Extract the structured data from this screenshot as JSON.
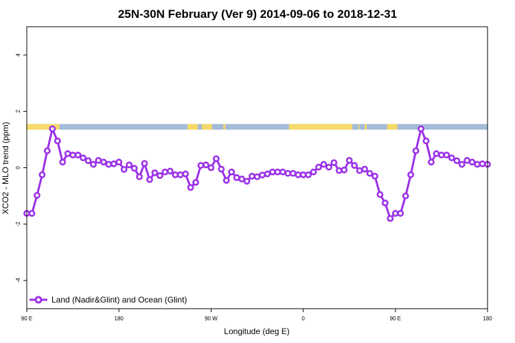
{
  "chart_data": {
    "type": "line",
    "title": "25N-30N February (Ver 9)   2014-09-06 to 2018-12-31",
    "xlabel": "Longitude (deg E)",
    "ylabel": "XCO2 - MLO trend (ppm)",
    "xlim": [
      90,
      540
    ],
    "ylim": [
      -5,
      5
    ],
    "x_ticks": [
      {
        "value": 90,
        "label": "90 E"
      },
      {
        "value": 180,
        "label": "180"
      },
      {
        "value": 270,
        "label": "90 W"
      },
      {
        "value": 360,
        "label": "0"
      },
      {
        "value": 450,
        "label": "90 E"
      },
      {
        "value": 540,
        "label": "180"
      }
    ],
    "y_ticks": [
      {
        "value": -4,
        "label": "-4"
      },
      {
        "value": -2,
        "label": "-2"
      },
      {
        "value": 0,
        "label": "0"
      },
      {
        "value": 2,
        "label": "2"
      },
      {
        "value": 4,
        "label": "4"
      }
    ],
    "grid": false,
    "legend_position": "bottom-left",
    "series": [
      {
        "name": "Land (Nadir&Glint) and Ocean (Glint)",
        "color": "#9b30e8",
        "x": [
          90,
          95,
          100,
          105,
          110,
          115,
          120,
          125,
          130,
          135,
          140,
          145,
          150,
          155,
          160,
          165,
          170,
          175,
          180,
          185,
          190,
          195,
          200,
          205,
          210,
          215,
          220,
          225,
          230,
          235,
          240,
          245,
          250,
          255,
          260,
          265,
          270,
          275,
          280,
          285,
          290,
          295,
          300,
          305,
          310,
          315,
          320,
          325,
          330,
          335,
          340,
          345,
          350,
          355,
          360,
          365,
          370,
          375,
          380,
          385,
          390,
          395,
          400,
          405,
          410,
          415,
          420,
          425,
          430,
          435,
          440,
          445,
          450,
          455,
          460,
          465,
          470,
          475,
          480,
          485,
          490,
          495,
          500,
          505,
          510,
          515,
          520,
          525,
          530,
          535,
          540
        ],
        "y": [
          -1.62,
          -1.62,
          -0.98,
          -0.25,
          0.6,
          1.38,
          0.95,
          0.2,
          0.5,
          0.45,
          0.45,
          0.35,
          0.25,
          0.12,
          0.26,
          0.2,
          0.12,
          0.14,
          0.2,
          -0.06,
          0.1,
          -0.02,
          -0.32,
          0.15,
          -0.42,
          -0.18,
          -0.28,
          -0.15,
          -0.12,
          -0.25,
          -0.25,
          -0.22,
          -0.7,
          -0.52,
          0.08,
          0.1,
          0.0,
          0.32,
          -0.05,
          -0.45,
          -0.15,
          -0.35,
          -0.4,
          -0.48,
          -0.3,
          -0.32,
          -0.26,
          -0.22,
          -0.15,
          -0.15,
          -0.15,
          -0.2,
          -0.2,
          -0.25,
          -0.25,
          -0.25,
          -0.15,
          0.02,
          0.12,
          0.02,
          0.18,
          -0.1,
          -0.08,
          0.26,
          0.08,
          -0.1,
          -0.05,
          -0.2,
          -0.3,
          -0.95,
          -1.25,
          -1.8,
          -1.62,
          -1.62,
          -1.0,
          -0.25,
          0.6,
          1.38,
          0.95,
          0.2,
          0.5,
          0.45,
          0.45,
          0.35,
          0.25,
          0.12,
          0.26,
          0.2,
          0.12,
          0.14,
          0.12
        ]
      }
    ],
    "land_ocean_band": {
      "y_range": [
        1.35,
        1.55
      ],
      "ocean_color": "#a4bbd9",
      "land_color": "#f5d96b",
      "land_intervals": [
        [
          90,
          122
        ],
        [
          247,
          257
        ],
        [
          261,
          271
        ],
        [
          282,
          284
        ],
        [
          346,
          408
        ],
        [
          414,
          415
        ],
        [
          420,
          422
        ],
        [
          442,
          452
        ]
      ]
    }
  }
}
